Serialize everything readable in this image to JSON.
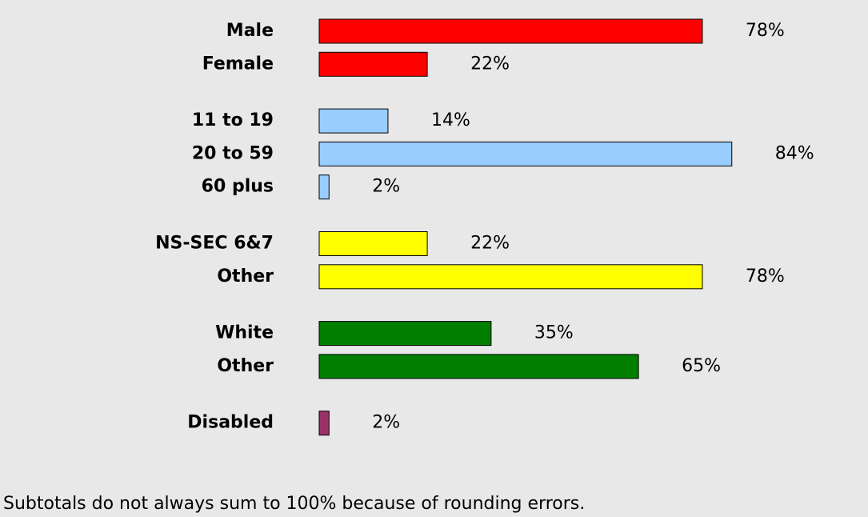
{
  "chart_data": {
    "type": "bar",
    "orientation": "horizontal",
    "groups": [
      {
        "color": "#ff0000",
        "categories": [
          "Male",
          "Female"
        ],
        "values": [
          78,
          22
        ],
        "value_labels": [
          "78%",
          "22%"
        ]
      },
      {
        "color": "#99ccff",
        "categories": [
          "11 to 19",
          "20 to 59",
          "60 plus"
        ],
        "values": [
          14,
          84,
          2
        ],
        "value_labels": [
          "14%",
          "84%",
          "2%"
        ]
      },
      {
        "color": "#ffff00",
        "categories": [
          "NS-SEC 6&7",
          "Other"
        ],
        "values": [
          22,
          78
        ],
        "value_labels": [
          "22%",
          "78%"
        ]
      },
      {
        "color": "#007f00",
        "categories": [
          "White",
          "Other"
        ],
        "values": [
          35,
          65
        ],
        "value_labels": [
          "35%",
          "65%"
        ]
      },
      {
        "color": "#993366",
        "categories": [
          "Disabled"
        ],
        "values": [
          2
        ],
        "value_labels": [
          "2%"
        ]
      }
    ],
    "note": "Subtotals do not always sum to 100% because of rounding errors."
  }
}
